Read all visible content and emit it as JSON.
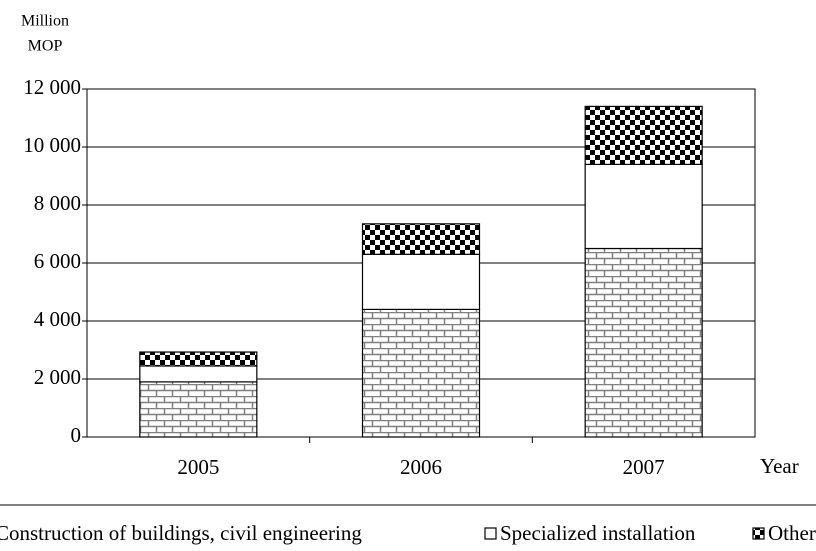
{
  "chart_data": {
    "type": "stacked_bar",
    "ylabel": [
      "Million",
      "MOP"
    ],
    "xlabel": "Year",
    "categories": [
      "2005",
      "2006",
      "2007"
    ],
    "series": [
      {
        "name": "Construction of buildings, civil engineering",
        "color": "#808080",
        "pattern": "brick",
        "values": [
          1900,
          4400,
          6500
        ]
      },
      {
        "name": "Specialized installation",
        "color": "#ffffff",
        "pattern": "solid",
        "values": [
          550,
          1900,
          2900
        ]
      },
      {
        "name": "Others",
        "color": "#000000",
        "pattern": "checker",
        "values": [
          480,
          1050,
          2000
        ]
      }
    ],
    "ylim": [
      0,
      12000
    ],
    "yticks": [
      0,
      {
        "value": 2000,
        "label": "2 000"
      },
      {
        "value": 4000,
        "label": "4 000"
      },
      {
        "value": 6000,
        "label": "6 000"
      },
      {
        "value": 8000,
        "label": "8 000"
      },
      {
        "value": 10000,
        "label": "10 000"
      },
      {
        "value": 12000,
        "label": "12 000"
      }
    ],
    "grid": true
  }
}
